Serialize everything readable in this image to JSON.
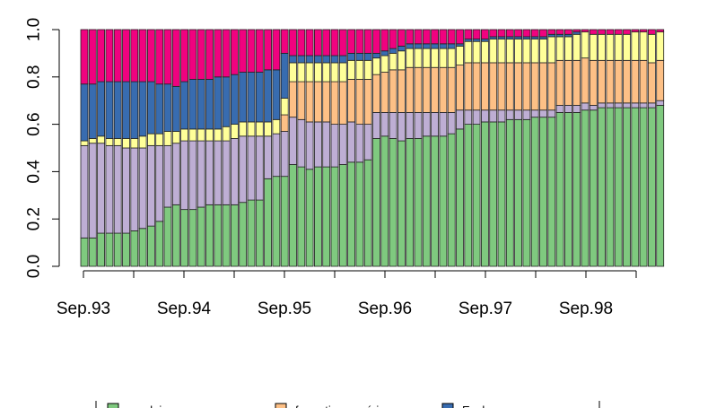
{
  "chart_data": {
    "type": "bar",
    "stacked": true,
    "normalized": true,
    "grid": false,
    "ylim": [
      0,
      1.0
    ],
    "yticks": [
      0.0,
      0.2,
      0.4,
      0.6,
      0.8,
      1.0
    ],
    "ytick_labels": [
      "0.0",
      "0.2",
      "0.4",
      "0.6",
      "0.8",
      "1.0"
    ],
    "xtick_labels": [
      "Sep.93",
      "Sep.94",
      "Sep.95",
      "Sep.96",
      "Sep.97",
      "Sep.98"
    ],
    "legend": {
      "placement": "bottom",
      "entries": [
        {
          "label": "emploi",
          "color": "#7fc97f"
        },
        {
          "label": "formation supérieure",
          "color": "#fdc086"
        },
        {
          "label": "Ecole",
          "color": "#386cb0"
        }
      ]
    },
    "colors": [
      "#7fc97f",
      "#beaed4",
      "#fdc086",
      "#ffff99",
      "#386cb0",
      "#f0027f"
    ],
    "n_bars": 70,
    "series": [
      {
        "values": [
          0.12,
          0.12,
          0.14,
          0.14,
          0.14,
          0.14,
          0.15,
          0.16,
          0.17,
          0.19,
          0.25,
          0.26,
          0.24,
          0.24,
          0.25,
          0.26,
          0.26,
          0.26,
          0.26,
          0.27,
          0.28,
          0.28,
          0.37,
          0.38,
          0.38,
          0.43,
          0.42,
          0.41,
          0.42,
          0.42,
          0.42,
          0.43,
          0.44,
          0.44,
          0.45,
          0.54,
          0.55,
          0.54,
          0.53,
          0.54,
          0.54,
          0.55,
          0.55,
          0.55,
          0.56,
          0.58,
          0.6,
          0.6,
          0.61,
          0.61,
          0.61,
          0.62,
          0.62,
          0.62,
          0.63,
          0.63,
          0.63,
          0.65,
          0.65,
          0.65,
          0.66,
          0.66,
          0.67,
          0.67,
          0.67,
          0.67,
          0.67,
          0.67,
          0.67,
          0.68
        ]
      },
      {
        "values": [
          0.39,
          0.4,
          0.38,
          0.37,
          0.37,
          0.36,
          0.35,
          0.34,
          0.34,
          0.32,
          0.26,
          0.26,
          0.29,
          0.29,
          0.28,
          0.27,
          0.27,
          0.27,
          0.28,
          0.28,
          0.27,
          0.27,
          0.18,
          0.18,
          0.19,
          0.2,
          0.2,
          0.2,
          0.19,
          0.19,
          0.18,
          0.17,
          0.17,
          0.16,
          0.15,
          0.11,
          0.1,
          0.11,
          0.12,
          0.11,
          0.11,
          0.1,
          0.1,
          0.1,
          0.09,
          0.08,
          0.06,
          0.06,
          0.05,
          0.05,
          0.05,
          0.04,
          0.04,
          0.04,
          0.03,
          0.03,
          0.03,
          0.03,
          0.03,
          0.03,
          0.03,
          0.02,
          0.02,
          0.02,
          0.02,
          0.02,
          0.02,
          0.02,
          0.02,
          0.02
        ]
      },
      {
        "values": [
          0.0,
          0.0,
          0.0,
          0.0,
          0.0,
          0.0,
          0.0,
          0.0,
          0.0,
          0.0,
          0.0,
          0.0,
          0.0,
          0.0,
          0.0,
          0.0,
          0.0,
          0.0,
          0.0,
          0.0,
          0.0,
          0.0,
          0.0,
          0.0,
          0.07,
          0.15,
          0.16,
          0.17,
          0.17,
          0.17,
          0.18,
          0.18,
          0.18,
          0.19,
          0.19,
          0.16,
          0.17,
          0.18,
          0.18,
          0.19,
          0.19,
          0.19,
          0.19,
          0.19,
          0.19,
          0.19,
          0.2,
          0.2,
          0.2,
          0.2,
          0.2,
          0.2,
          0.2,
          0.2,
          0.2,
          0.2,
          0.2,
          0.19,
          0.19,
          0.19,
          0.19,
          0.19,
          0.18,
          0.18,
          0.18,
          0.18,
          0.18,
          0.18,
          0.17,
          0.17
        ]
      },
      {
        "values": [
          0.02,
          0.02,
          0.03,
          0.03,
          0.03,
          0.04,
          0.04,
          0.05,
          0.05,
          0.05,
          0.06,
          0.05,
          0.05,
          0.05,
          0.05,
          0.05,
          0.05,
          0.06,
          0.06,
          0.06,
          0.06,
          0.06,
          0.06,
          0.06,
          0.07,
          0.08,
          0.08,
          0.08,
          0.08,
          0.08,
          0.08,
          0.08,
          0.08,
          0.08,
          0.08,
          0.07,
          0.07,
          0.07,
          0.08,
          0.08,
          0.08,
          0.08,
          0.08,
          0.08,
          0.08,
          0.08,
          0.09,
          0.09,
          0.09,
          0.1,
          0.1,
          0.1,
          0.1,
          0.1,
          0.1,
          0.1,
          0.11,
          0.1,
          0.1,
          0.11,
          0.11,
          0.11,
          0.11,
          0.11,
          0.11,
          0.11,
          0.12,
          0.12,
          0.12,
          0.12
        ]
      },
      {
        "values": [
          0.24,
          0.23,
          0.23,
          0.24,
          0.24,
          0.24,
          0.24,
          0.23,
          0.22,
          0.21,
          0.2,
          0.19,
          0.2,
          0.21,
          0.21,
          0.21,
          0.22,
          0.21,
          0.21,
          0.21,
          0.21,
          0.21,
          0.22,
          0.21,
          0.19,
          0.03,
          0.03,
          0.03,
          0.03,
          0.03,
          0.03,
          0.03,
          0.03,
          0.03,
          0.03,
          0.02,
          0.02,
          0.02,
          0.02,
          0.02,
          0.02,
          0.02,
          0.02,
          0.02,
          0.02,
          0.01,
          0.01,
          0.01,
          0.01,
          0.01,
          0.01,
          0.01,
          0.01,
          0.01,
          0.01,
          0.01,
          0.01,
          0.01,
          0.01,
          0.01,
          0.0,
          0.0,
          0.0,
          0.0,
          0.0,
          0.0,
          0.0,
          0.0,
          0.0,
          0.0
        ]
      },
      {
        "values": [
          0.23,
          0.23,
          0.22,
          0.22,
          0.22,
          0.22,
          0.22,
          0.22,
          0.22,
          0.23,
          0.23,
          0.24,
          0.22,
          0.21,
          0.21,
          0.21,
          0.2,
          0.2,
          0.19,
          0.18,
          0.18,
          0.18,
          0.17,
          0.17,
          0.1,
          0.11,
          0.11,
          0.11,
          0.11,
          0.11,
          0.11,
          0.11,
          0.1,
          0.1,
          0.1,
          0.1,
          0.09,
          0.08,
          0.07,
          0.06,
          0.06,
          0.06,
          0.06,
          0.06,
          0.06,
          0.06,
          0.04,
          0.04,
          0.04,
          0.03,
          0.03,
          0.03,
          0.03,
          0.03,
          0.03,
          0.03,
          0.02,
          0.02,
          0.02,
          0.01,
          0.01,
          0.02,
          0.02,
          0.02,
          0.02,
          0.02,
          0.01,
          0.01,
          0.02,
          0.01
        ]
      }
    ]
  }
}
